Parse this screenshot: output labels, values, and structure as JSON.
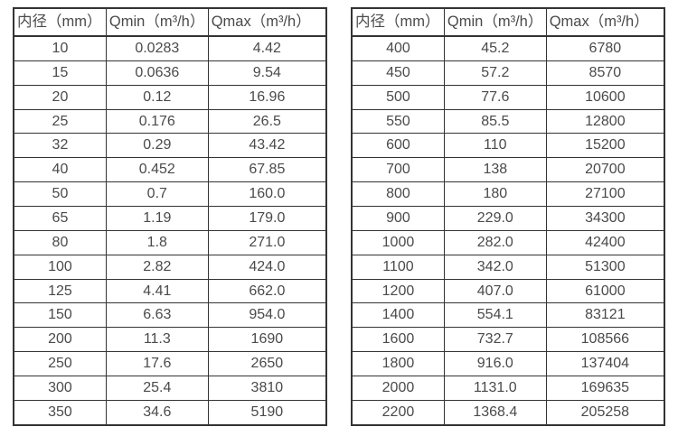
{
  "colors": {
    "background": "#ffffff",
    "border": "#333333",
    "text": "#4a4a4a"
  },
  "tables": [
    {
      "name": "flow-table-small-diameters",
      "headers": [
        "内径（mm）",
        "Qmin（m³/h）",
        "Qmax（m³/h）"
      ],
      "rows": [
        [
          "10",
          "0.0283",
          "4.42"
        ],
        [
          "15",
          "0.0636",
          "9.54"
        ],
        [
          "20",
          "0.12",
          "16.96"
        ],
        [
          "25",
          "0.176",
          "26.5"
        ],
        [
          "32",
          "0.29",
          "43.42"
        ],
        [
          "40",
          "0.452",
          "67.85"
        ],
        [
          "50",
          "0.7",
          "160.0"
        ],
        [
          "65",
          "1.19",
          "179.0"
        ],
        [
          "80",
          "1.8",
          "271.0"
        ],
        [
          "100",
          "2.82",
          "424.0"
        ],
        [
          "125",
          "4.41",
          "662.0"
        ],
        [
          "150",
          "6.63",
          "954.0"
        ],
        [
          "200",
          "11.3",
          "1690"
        ],
        [
          "250",
          "17.6",
          "2650"
        ],
        [
          "300",
          "25.4",
          "3810"
        ],
        [
          "350",
          "34.6",
          "5190"
        ]
      ]
    },
    {
      "name": "flow-table-large-diameters",
      "headers": [
        "内径（mm）",
        "Qmin（m³/h）",
        "Qmax（m³/h）"
      ],
      "rows": [
        [
          "400",
          "45.2",
          "6780"
        ],
        [
          "450",
          "57.2",
          "8570"
        ],
        [
          "500",
          "77.6",
          "10600"
        ],
        [
          "550",
          "85.5",
          "12800"
        ],
        [
          "600",
          "110",
          "15200"
        ],
        [
          "700",
          "138",
          "20700"
        ],
        [
          "800",
          "180",
          "27100"
        ],
        [
          "900",
          "229.0",
          "34300"
        ],
        [
          "1000",
          "282.0",
          "42400"
        ],
        [
          "1100",
          "342.0",
          "51300"
        ],
        [
          "1200",
          "407.0",
          "61000"
        ],
        [
          "1400",
          "554.1",
          "83121"
        ],
        [
          "1600",
          "732.7",
          "108566"
        ],
        [
          "1800",
          "916.0",
          "137404"
        ],
        [
          "2000",
          "1131.0",
          "169635"
        ],
        [
          "2200",
          "1368.4",
          "205258"
        ]
      ]
    }
  ]
}
